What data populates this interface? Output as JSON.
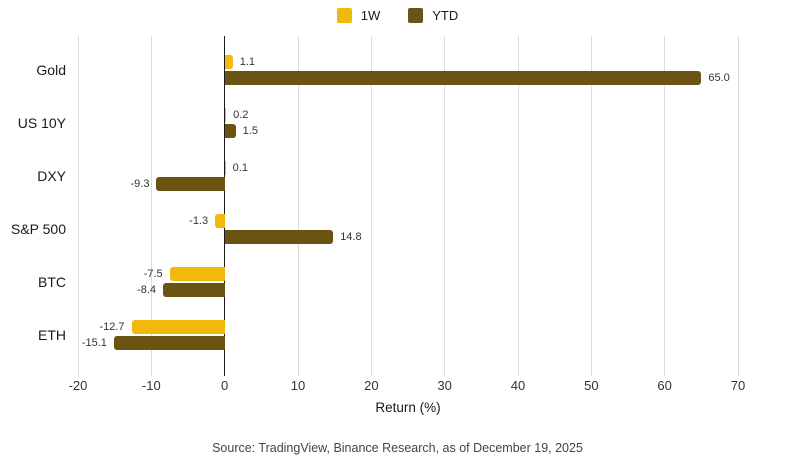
{
  "legend": {
    "items": [
      {
        "label": "1W",
        "color": "#F0B90B"
      },
      {
        "label": "YTD",
        "color": "#6B5413"
      }
    ]
  },
  "chart_data": {
    "type": "bar",
    "orientation": "horizontal",
    "title": "",
    "categories": [
      "Gold",
      "US 10Y",
      "DXY",
      "S&P 500",
      "BTC",
      "ETH"
    ],
    "series": [
      {
        "name": "1W",
        "color": "#F0B90B",
        "values": [
          1.1,
          0.2,
          0.1,
          -1.3,
          -7.5,
          -12.7
        ]
      },
      {
        "name": "YTD",
        "color": "#6B5413",
        "values": [
          65.0,
          1.5,
          -9.3,
          14.8,
          -8.4,
          -15.1
        ]
      }
    ],
    "xlabel": "Return (%)",
    "ylabel": "",
    "xlim": [
      -20,
      70
    ],
    "xticks": [
      -20,
      -10,
      0,
      10,
      20,
      30,
      40,
      50,
      60,
      70
    ],
    "grid": true,
    "legend_position": "top",
    "value_label_decimals": 1
  },
  "colors": {
    "grid": "#dcdcdc",
    "zero_line": "#1a1a1a",
    "text": "#1a1a1a",
    "value_text": "#333333"
  },
  "footer": {
    "source": "Source: TradingView, Binance Research, as of December 19, 2025"
  }
}
